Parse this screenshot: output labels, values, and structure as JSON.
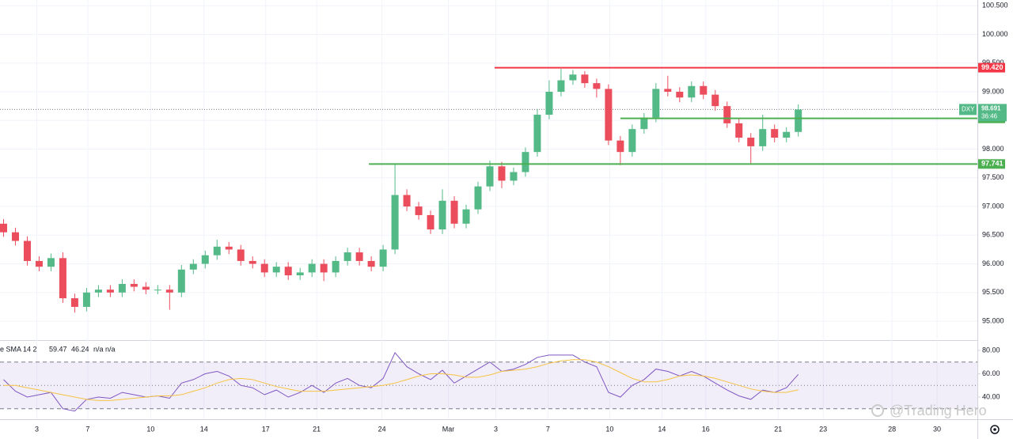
{
  "chart_data": {
    "type": "candlestick",
    "symbol": "DXY",
    "countdown": "36:46",
    "watermark": "@Trading Hero",
    "colors": {
      "up": "#53b987",
      "down": "#eb4d5c"
    },
    "open": [
      96.7,
      96.55,
      96.4,
      96.05,
      95.95,
      96.1,
      95.4,
      95.25,
      95.5,
      95.55,
      95.5,
      95.65,
      95.6,
      95.55,
      95.55,
      95.5,
      95.9,
      96.0,
      96.15,
      96.3,
      96.25,
      96.05,
      96.0,
      95.85,
      95.95,
      95.8,
      95.85,
      96.0,
      95.85,
      96.05,
      96.2,
      96.05,
      95.95,
      96.25,
      97.2,
      97.0,
      96.85,
      96.6,
      97.1,
      96.7,
      96.95,
      97.35,
      97.7,
      97.45,
      97.6,
      97.95,
      98.6,
      99.0,
      99.2,
      99.3,
      99.15,
      99.05,
      98.15,
      97.95,
      98.35,
      98.55,
      99.05,
      99.0,
      98.9,
      99.1,
      98.95,
      98.75,
      98.45,
      98.2,
      98.05,
      98.35,
      98.2,
      98.3
    ],
    "high": [
      96.78,
      96.63,
      96.48,
      96.13,
      96.18,
      96.2,
      95.48,
      95.58,
      95.63,
      95.63,
      95.73,
      95.73,
      95.68,
      95.63,
      95.63,
      95.98,
      96.08,
      96.23,
      96.42,
      96.38,
      96.33,
      96.13,
      96.08,
      96.03,
      96.03,
      95.93,
      96.08,
      96.08,
      96.13,
      96.28,
      96.28,
      96.13,
      96.33,
      97.74,
      97.3,
      97.08,
      96.93,
      97.3,
      97.18,
      97.03,
      97.43,
      97.8,
      97.78,
      97.68,
      98.03,
      98.7,
      99.2,
      99.4,
      99.38,
      99.36,
      99.23,
      99.13,
      98.23,
      98.43,
      98.63,
      99.15,
      99.28,
      99.08,
      99.18,
      99.18,
      99.03,
      98.83,
      98.53,
      98.28,
      98.6,
      98.43,
      98.38,
      98.78
    ],
    "low": [
      96.47,
      96.32,
      95.97,
      95.87,
      95.87,
      95.32,
      95.15,
      95.17,
      95.42,
      95.42,
      95.42,
      95.52,
      95.47,
      95.47,
      95.2,
      95.42,
      95.82,
      95.92,
      96.07,
      96.17,
      95.97,
      95.92,
      95.77,
      95.77,
      95.72,
      95.72,
      95.77,
      95.7,
      95.77,
      95.97,
      95.97,
      95.87,
      95.87,
      96.17,
      96.92,
      96.77,
      96.52,
      96.52,
      96.62,
      96.62,
      96.87,
      97.27,
      97.32,
      97.37,
      97.52,
      97.87,
      98.52,
      98.92,
      99.12,
      99.07,
      98.9,
      98.07,
      97.72,
      97.87,
      98.27,
      98.47,
      98.92,
      98.82,
      98.82,
      98.87,
      98.67,
      98.37,
      98.12,
      97.74,
      97.97,
      98.12,
      98.12,
      98.22
    ],
    "close": [
      96.55,
      96.4,
      96.05,
      95.95,
      96.1,
      95.4,
      95.25,
      95.5,
      95.55,
      95.5,
      95.65,
      95.6,
      95.55,
      95.55,
      95.5,
      95.9,
      96.0,
      96.15,
      96.3,
      96.25,
      96.05,
      96.0,
      95.85,
      95.95,
      95.8,
      95.85,
      96.0,
      95.85,
      96.05,
      96.2,
      96.05,
      95.95,
      96.25,
      97.2,
      97.0,
      96.85,
      96.6,
      97.1,
      96.7,
      96.95,
      97.35,
      97.7,
      97.45,
      97.6,
      97.95,
      98.6,
      99.0,
      99.2,
      99.3,
      99.15,
      99.05,
      98.15,
      97.95,
      98.35,
      98.55,
      99.05,
      99.0,
      98.9,
      99.1,
      98.95,
      98.75,
      98.45,
      98.2,
      98.05,
      98.35,
      98.2,
      98.3,
      98.691
    ],
    "xlim": [
      -0.3,
      82.1
    ],
    "xticks": [
      {
        "value": 2.8,
        "label": "3"
      },
      {
        "value": 7.1,
        "label": "7"
      },
      {
        "value": 12.4,
        "label": "10"
      },
      {
        "value": 16.9,
        "label": "14"
      },
      {
        "value": 22.1,
        "label": "17"
      },
      {
        "value": 26.4,
        "label": "21"
      },
      {
        "value": 31.9,
        "label": "24"
      },
      {
        "value": 37.5,
        "label": "Mar"
      },
      {
        "value": 41.5,
        "label": "3"
      },
      {
        "value": 45.9,
        "label": "7"
      },
      {
        "value": 51.1,
        "label": "10"
      },
      {
        "value": 55.5,
        "label": "14"
      },
      {
        "value": 59.2,
        "label": "16"
      },
      {
        "value": 65.3,
        "label": "21"
      },
      {
        "value": 69.1,
        "label": "23"
      },
      {
        "value": 74.9,
        "label": "28"
      },
      {
        "value": 78.7,
        "label": "30"
      }
    ],
    "ylim": [
      94.67,
      100.6
    ],
    "yticks": [
      {
        "value": 95,
        "label": "95.000"
      },
      {
        "value": 95.5,
        "label": "95.500"
      },
      {
        "value": 96,
        "label": "96.000"
      },
      {
        "value": 96.5,
        "label": "96.500"
      },
      {
        "value": 97,
        "label": "97.000"
      },
      {
        "value": 97.5,
        "label": "97.500"
      },
      {
        "value": 98,
        "label": "98.000"
      },
      {
        "value": 98.5,
        "label": "98.500"
      },
      {
        "value": 99,
        "label": "99.000"
      },
      {
        "value": 99.5,
        "label": "99.500"
      },
      {
        "value": 100,
        "label": "100.000"
      },
      {
        "value": 100.5,
        "label": "100.500"
      }
    ],
    "levels": [
      {
        "value": 99.42,
        "label": "99.420",
        "color": "#f23645",
        "start": 41.4
      },
      {
        "value": 98.536,
        "color": "#4caf50",
        "start": 52.0
      },
      {
        "value": 97.741,
        "color": "#4caf50",
        "start": 30.8
      }
    ],
    "rsi": {
      "legend_title": "e SMA 14 2",
      "legend_na": "n/a n/a",
      "ylim": [
        21,
        88.8
      ],
      "yticks": [
        {
          "value": 40,
          "label": "40.00"
        },
        {
          "value": 60,
          "label": "60.00"
        },
        {
          "value": 80,
          "label": "80.00"
        }
      ],
      "band": [
        30,
        70
      ],
      "midline": 50,
      "series": [
        {
          "name": "RSI",
          "color": "#7e57c2",
          "values": [
            55,
            45,
            40,
            42,
            44,
            30,
            28,
            38,
            40,
            39,
            44,
            42,
            40,
            41,
            39,
            52,
            55,
            60,
            62,
            58,
            50,
            48,
            42,
            46,
            40,
            44,
            50,
            44,
            52,
            56,
            50,
            48,
            56,
            78,
            66,
            60,
            55,
            63,
            52,
            58,
            64,
            70,
            62,
            64,
            68,
            74,
            76,
            76,
            76,
            70,
            66,
            44,
            40,
            50,
            55,
            64,
            62,
            58,
            62,
            58,
            52,
            46,
            41,
            38,
            46,
            44,
            48,
            59.47
          ]
        },
        {
          "name": "SMA",
          "color": "#f5c343",
          "values": [
            50,
            50,
            48,
            46,
            44,
            42,
            40,
            38,
            37,
            37,
            38,
            39,
            40,
            41,
            41,
            42,
            45,
            48,
            52,
            55,
            56,
            55,
            52,
            49,
            47,
            45,
            45,
            45,
            46,
            47,
            48,
            49,
            50,
            52,
            55,
            58,
            60,
            60,
            59,
            57,
            57,
            59,
            62,
            63,
            64,
            66,
            69,
            71,
            72,
            72,
            70,
            66,
            61,
            56,
            53,
            53,
            55,
            58,
            59,
            58,
            56,
            53,
            50,
            47,
            45,
            44,
            44,
            46.24
          ]
        }
      ]
    }
  }
}
